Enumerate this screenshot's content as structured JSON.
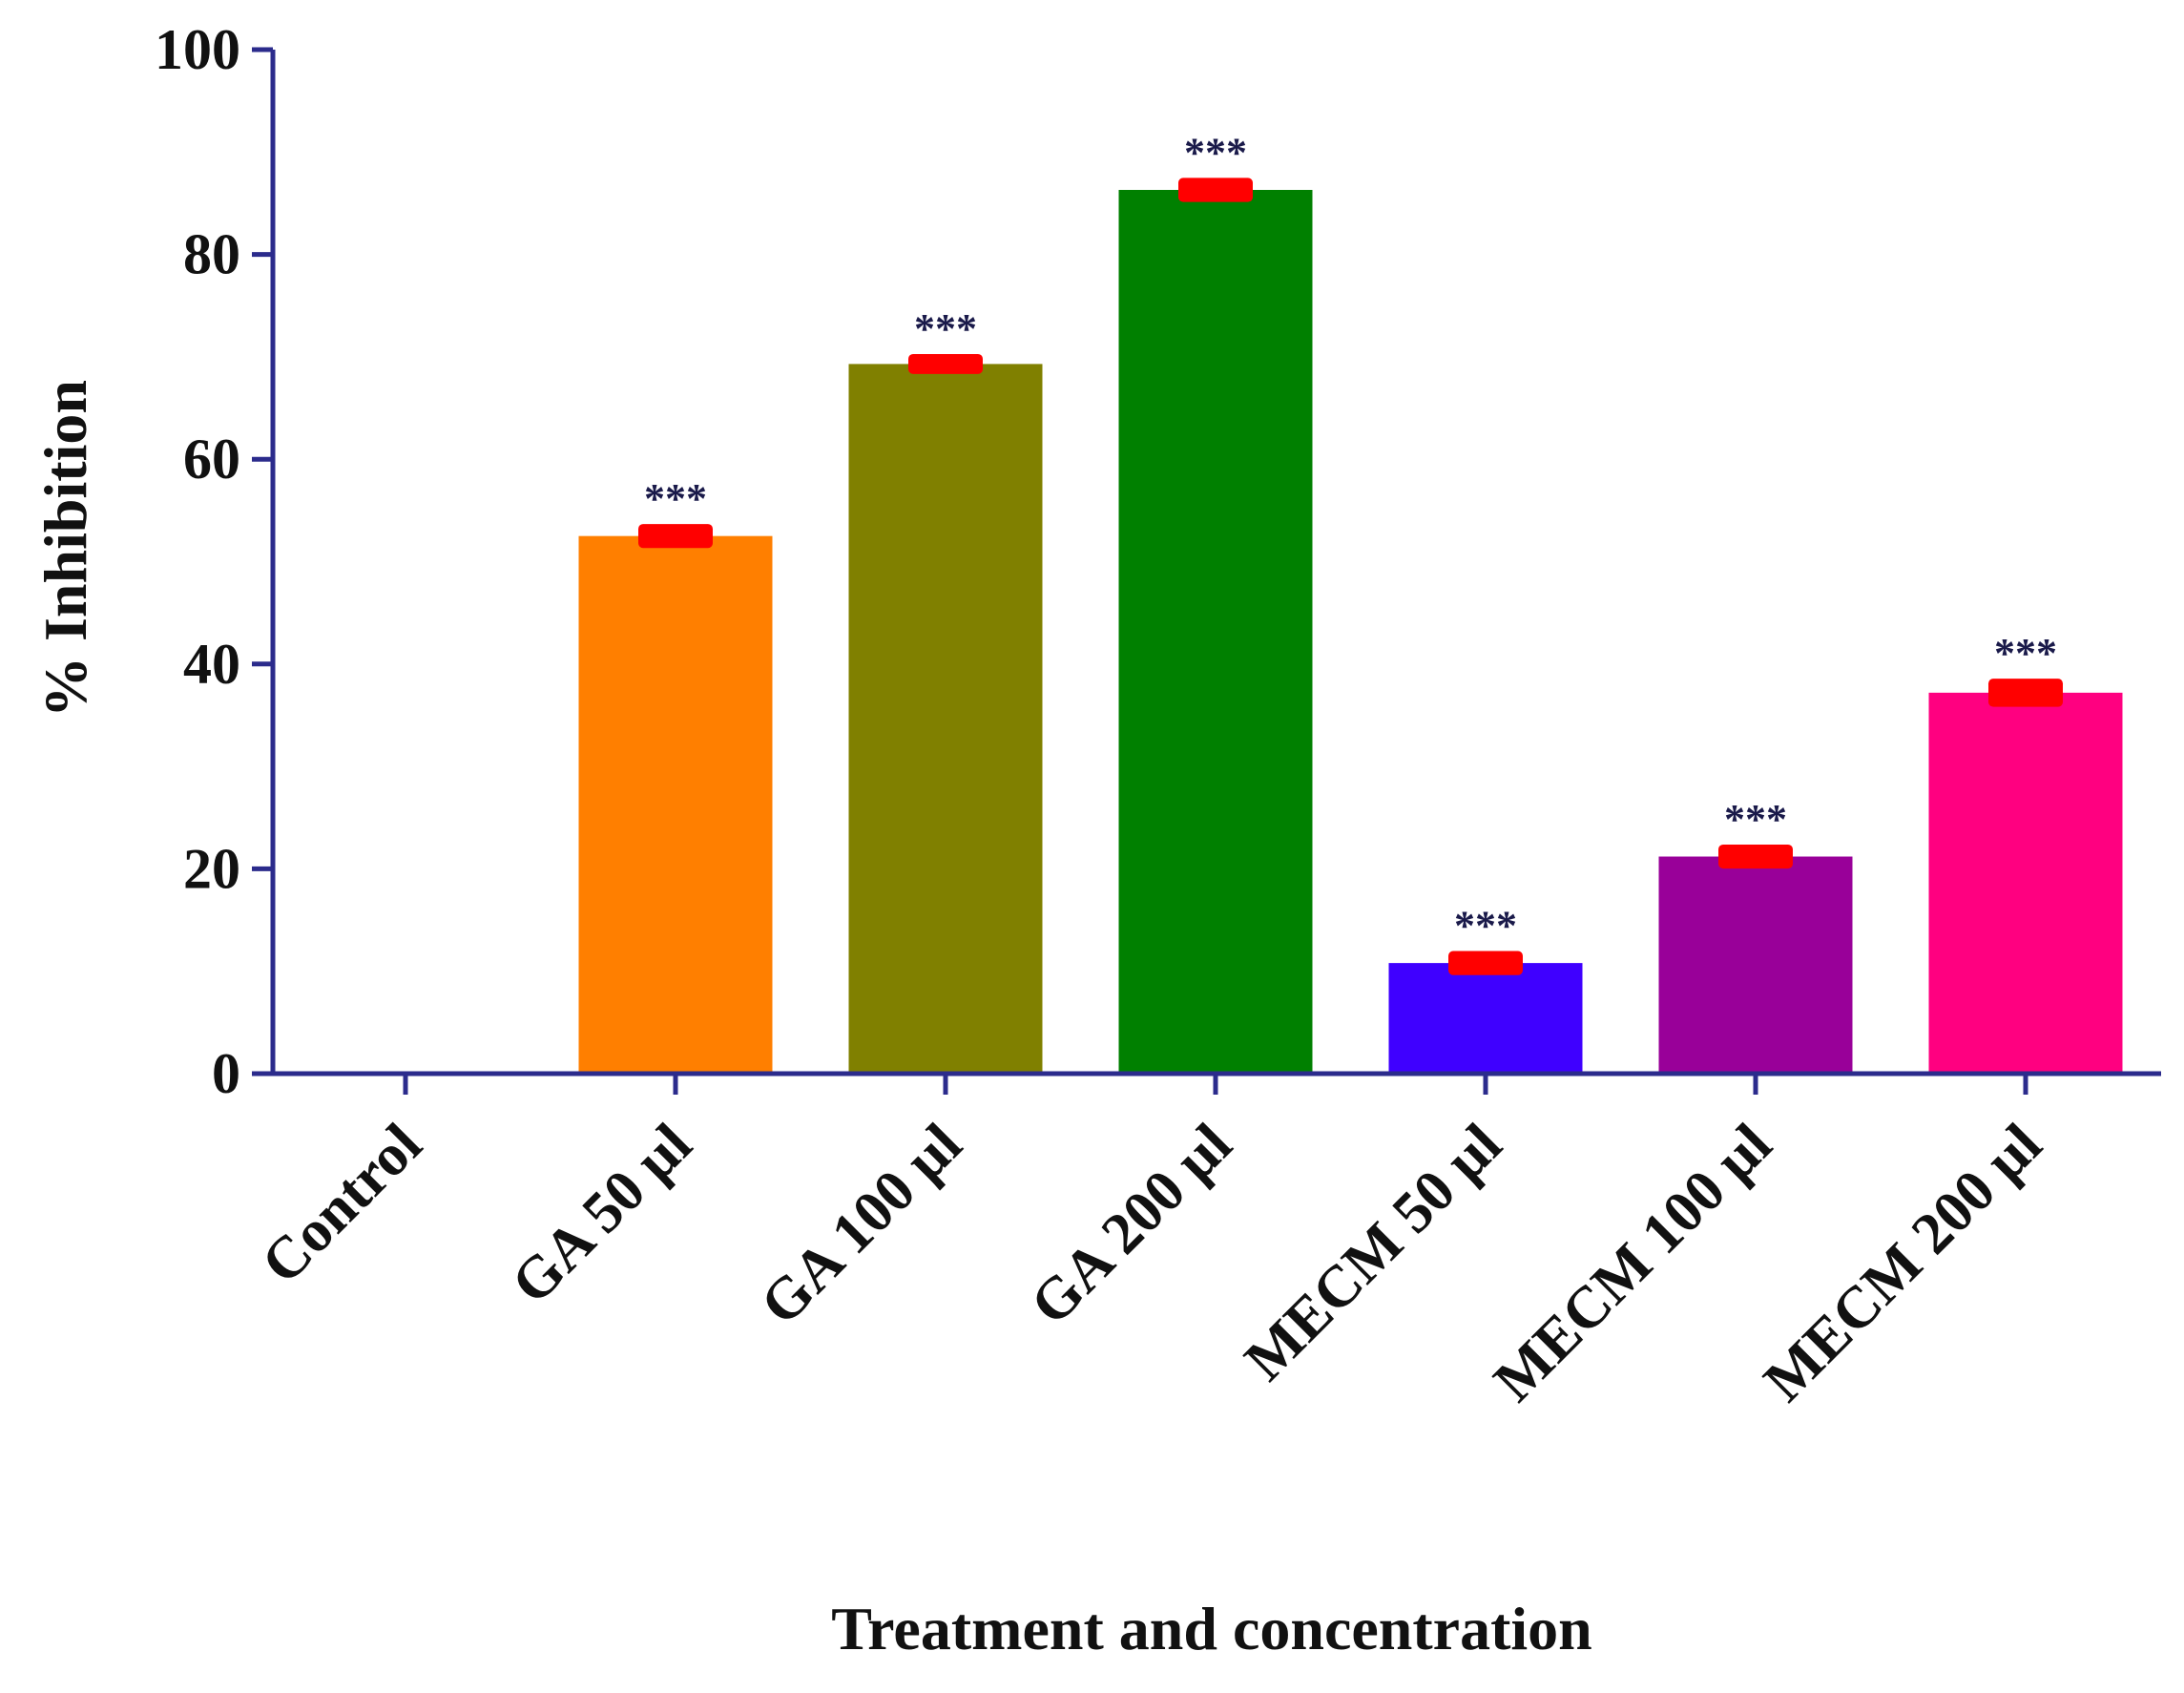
{
  "colors": {
    "axis": "#2b2b8c",
    "error_bar": "#ff0000"
  },
  "chart_data": {
    "type": "bar",
    "title": "",
    "xlabel": "Treatment and concentration",
    "ylabel": "% Inhibition",
    "ylim": [
      0,
      100
    ],
    "yticks": [
      0,
      20,
      40,
      60,
      80,
      100
    ],
    "grid": false,
    "categories": [
      "Control",
      "GA 50 µl",
      "GA 100 µl",
      "GA 200 µl",
      "MECM 50 µl",
      "MECM 100 µl",
      "MECM 200 µl"
    ],
    "values": [
      0,
      52.5,
      69.3,
      86.3,
      10.8,
      21.2,
      37.2
    ],
    "errors": [
      0,
      0.8,
      0.6,
      0.8,
      0.8,
      0.8,
      1.0
    ],
    "bar_colors": [
      "#ffffff",
      "#ff7f00",
      "#808000",
      "#008000",
      "#3f00ff",
      "#990099",
      "#ff0080"
    ],
    "significance": [
      "",
      "***",
      "***",
      "***",
      "***",
      "***",
      "***"
    ]
  }
}
